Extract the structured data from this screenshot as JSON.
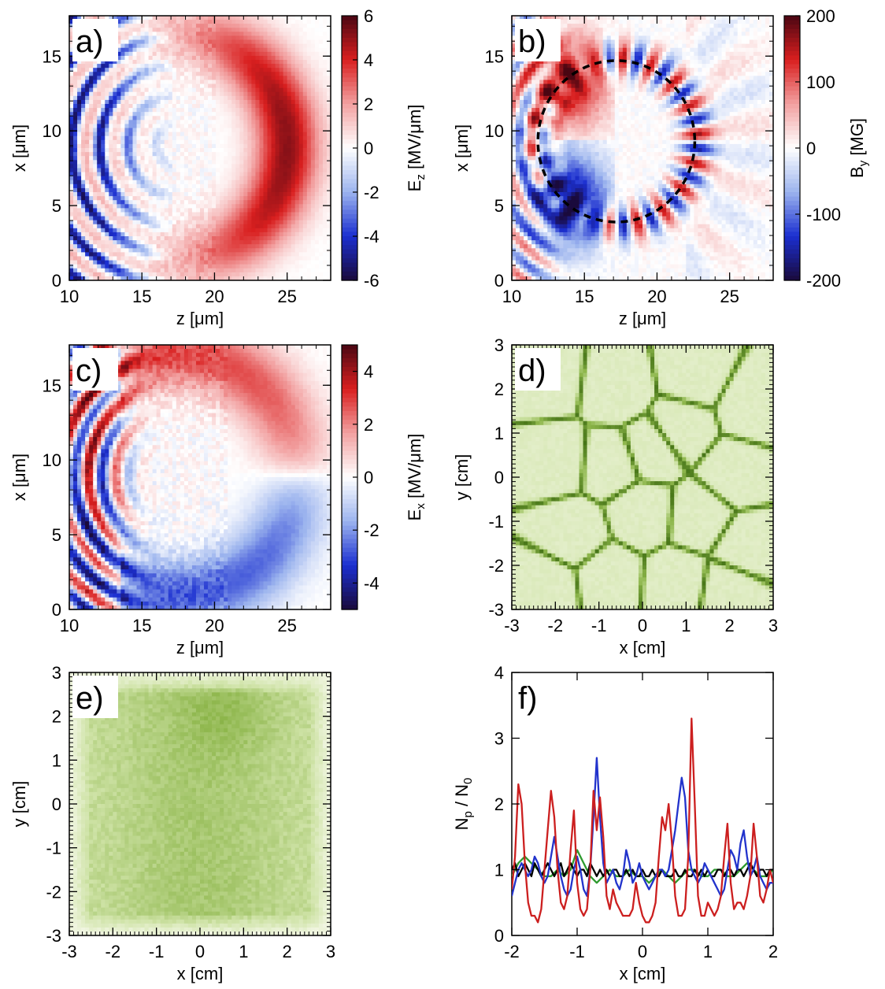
{
  "colors": {
    "red": "#cc1f1f",
    "blue": "#2233cc",
    "green": "#2e9a2e",
    "black": "#000000",
    "greenmap": [
      "#f1f6e2",
      "#cfe3a7",
      "#8db64b",
      "#3f6e12"
    ],
    "divmap": [
      "#1a0a3c",
      "#1b2fd0",
      "#9cb4ee",
      "#ffffff",
      "#f2a0a0",
      "#d91f1f",
      "#4a0612"
    ]
  },
  "chart_data": [
    {
      "id": "a",
      "type": "heatmap",
      "label": "a)",
      "title": "",
      "xlabel": "z [μm]",
      "ylabel": "x [μm]",
      "xlim": [
        10,
        28
      ],
      "ylim": [
        0,
        17.7
      ],
      "xticks": [
        "10",
        "15",
        "20",
        "25"
      ],
      "xtick_values": [
        10,
        15,
        20,
        25
      ],
      "yticks": [
        "0",
        "5",
        "10",
        "15"
      ],
      "ytick_values": [
        0,
        5,
        10,
        15
      ],
      "colorbar": {
        "label": "E_z [MV/μm]",
        "range": [
          -6,
          6
        ],
        "ticks": [
          "6",
          "4",
          "2",
          "0",
          "-2",
          "-4",
          "-6"
        ],
        "tick_values": [
          6,
          4,
          2,
          0,
          -2,
          -4,
          -6
        ]
      },
      "field": "Ez"
    },
    {
      "id": "b",
      "type": "heatmap",
      "label": "b)",
      "title": "",
      "xlabel": "z [μm]",
      "ylabel": "x [μm]",
      "xlim": [
        10,
        28
      ],
      "ylim": [
        0,
        17.7
      ],
      "xticks": [
        "10",
        "15",
        "20",
        "25"
      ],
      "xtick_values": [
        10,
        15,
        20,
        25
      ],
      "yticks": [
        "0",
        "5",
        "10",
        "15"
      ],
      "ytick_values": [
        0,
        5,
        10,
        15
      ],
      "colorbar": {
        "label": "B_y [MG]",
        "range": [
          -200,
          200
        ],
        "ticks": [
          "200",
          "100",
          "0",
          "-100",
          "-200"
        ],
        "tick_values": [
          200,
          100,
          0,
          -100,
          -200
        ]
      },
      "annotation": {
        "shape": "dashed-circle",
        "center": [
          17.2,
          9.3
        ],
        "radius": 5.4
      },
      "field": "By"
    },
    {
      "id": "c",
      "type": "heatmap",
      "label": "c)",
      "title": "",
      "xlabel": "z [μm]",
      "ylabel": "x [μm]",
      "xlim": [
        10,
        28
      ],
      "ylim": [
        0,
        17.7
      ],
      "xticks": [
        "10",
        "15",
        "20",
        "25"
      ],
      "xtick_values": [
        10,
        15,
        20,
        25
      ],
      "yticks": [
        "0",
        "5",
        "10",
        "15"
      ],
      "ytick_values": [
        0,
        5,
        10,
        15
      ],
      "colorbar": {
        "label": "E_x [MV/μm]",
        "range": [
          -5,
          5
        ],
        "ticks": [
          "4",
          "2",
          "0",
          "-2",
          "-4"
        ],
        "tick_values": [
          4,
          2,
          0,
          -2,
          -4
        ]
      },
      "field": "Ex"
    },
    {
      "id": "d",
      "type": "heatmap",
      "label": "d)",
      "title": "",
      "xlabel": "x [cm]",
      "ylabel": "y [cm]",
      "xlim": [
        -3,
        3
      ],
      "ylim": [
        -3,
        3
      ],
      "xticks": [
        "-3",
        "-2",
        "-1",
        "0",
        "1",
        "2",
        "3"
      ],
      "xtick_values": [
        -3,
        -2,
        -1,
        0,
        1,
        2,
        3
      ],
      "yticks": [
        "-3",
        "-2",
        "-1",
        "0",
        "1",
        "2",
        "3"
      ],
      "ytick_values": [
        -3,
        -2,
        -1,
        0,
        1,
        2,
        3
      ],
      "field": "cells"
    },
    {
      "id": "e",
      "type": "heatmap",
      "label": "e)",
      "title": "",
      "xlabel": "x [cm]",
      "ylabel": "y [cm]",
      "xlim": [
        -3,
        3
      ],
      "ylim": [
        -3,
        3
      ],
      "xticks": [
        "-3",
        "-2",
        "-1",
        "0",
        "1",
        "2",
        "3"
      ],
      "xtick_values": [
        -3,
        -2,
        -1,
        0,
        1,
        2,
        3
      ],
      "yticks": [
        "-3",
        "-2",
        "-1",
        "0",
        "1",
        "2",
        "3"
      ],
      "ytick_values": [
        -3,
        -2,
        -1,
        0,
        1,
        2,
        3
      ],
      "field": "diffuse"
    },
    {
      "id": "f",
      "type": "line",
      "label": "f)",
      "title": "",
      "xlabel": "x [cm]",
      "ylabel": "N_p / N_0",
      "xlim": [
        -2,
        2
      ],
      "ylim": [
        0,
        4
      ],
      "xticks": [
        "-2",
        "-1",
        "0",
        "1",
        "2"
      ],
      "xtick_values": [
        -2,
        -1,
        0,
        1,
        2
      ],
      "yticks": [
        "0",
        "1",
        "2",
        "3",
        "4"
      ],
      "ytick_values": [
        0,
        1,
        2,
        3,
        4
      ],
      "series": [
        {
          "name": "red",
          "color": "#cc1f1f",
          "x": [
            -2.0,
            -1.95,
            -1.9,
            -1.85,
            -1.8,
            -1.75,
            -1.7,
            -1.65,
            -1.6,
            -1.55,
            -1.5,
            -1.45,
            -1.4,
            -1.35,
            -1.3,
            -1.25,
            -1.2,
            -1.15,
            -1.1,
            -1.05,
            -1.0,
            -0.95,
            -0.9,
            -0.85,
            -0.8,
            -0.75,
            -0.7,
            -0.65,
            -0.6,
            -0.55,
            -0.5,
            -0.45,
            -0.4,
            -0.35,
            -0.3,
            -0.25,
            -0.2,
            -0.15,
            -0.1,
            -0.05,
            0.0,
            0.05,
            0.1,
            0.15,
            0.2,
            0.25,
            0.3,
            0.35,
            0.4,
            0.45,
            0.5,
            0.55,
            0.6,
            0.65,
            0.7,
            0.75,
            0.8,
            0.85,
            0.9,
            0.95,
            1.0,
            1.05,
            1.1,
            1.15,
            1.2,
            1.25,
            1.3,
            1.35,
            1.4,
            1.45,
            1.5,
            1.55,
            1.6,
            1.65,
            1.7,
            1.75,
            1.8,
            1.85,
            1.9,
            1.95,
            2.0
          ],
          "values": [
            0.7,
            1.2,
            2.3,
            2.0,
            1.1,
            0.5,
            0.3,
            0.3,
            0.2,
            0.4,
            1.0,
            1.6,
            2.2,
            1.8,
            1.0,
            0.5,
            0.4,
            0.6,
            1.3,
            1.9,
            0.8,
            0.4,
            0.3,
            0.4,
            1.0,
            2.2,
            1.6,
            2.1,
            1.5,
            0.6,
            0.4,
            0.7,
            0.5,
            0.4,
            0.3,
            0.3,
            0.3,
            0.4,
            0.8,
            0.5,
            0.3,
            0.2,
            0.2,
            0.3,
            0.5,
            1.2,
            1.8,
            1.6,
            2.0,
            1.4,
            0.6,
            0.3,
            0.3,
            0.4,
            1.2,
            3.3,
            2.0,
            0.6,
            0.3,
            0.3,
            0.5,
            0.4,
            0.3,
            0.4,
            0.6,
            1.2,
            1.7,
            0.8,
            0.4,
            0.5,
            0.5,
            0.4,
            0.6,
            0.9,
            1.7,
            1.2,
            0.6,
            0.5,
            0.7,
            1.0,
            0.8
          ]
        },
        {
          "name": "blue",
          "color": "#2233cc",
          "x": [
            -2.0,
            -1.95,
            -1.9,
            -1.85,
            -1.8,
            -1.75,
            -1.7,
            -1.65,
            -1.6,
            -1.55,
            -1.5,
            -1.45,
            -1.4,
            -1.35,
            -1.3,
            -1.25,
            -1.2,
            -1.15,
            -1.1,
            -1.05,
            -1.0,
            -0.95,
            -0.9,
            -0.85,
            -0.8,
            -0.75,
            -0.7,
            -0.65,
            -0.6,
            -0.55,
            -0.5,
            -0.45,
            -0.4,
            -0.35,
            -0.3,
            -0.25,
            -0.2,
            -0.15,
            -0.1,
            -0.05,
            0.0,
            0.05,
            0.1,
            0.15,
            0.2,
            0.25,
            0.3,
            0.35,
            0.4,
            0.45,
            0.5,
            0.55,
            0.6,
            0.65,
            0.7,
            0.75,
            0.8,
            0.85,
            0.9,
            0.95,
            1.0,
            1.05,
            1.1,
            1.15,
            1.2,
            1.25,
            1.3,
            1.35,
            1.4,
            1.45,
            1.5,
            1.55,
            1.6,
            1.65,
            1.7,
            1.75,
            1.8,
            1.85,
            1.9,
            1.95,
            2.0
          ],
          "values": [
            0.6,
            0.8,
            1.0,
            1.1,
            1.0,
            0.9,
            1.0,
            1.2,
            1.1,
            0.9,
            0.8,
            0.9,
            1.2,
            1.5,
            1.2,
            0.9,
            0.7,
            0.6,
            0.7,
            1.0,
            1.2,
            1.0,
            0.7,
            0.6,
            1.0,
            1.8,
            2.7,
            1.8,
            1.1,
            0.8,
            0.9,
            1.0,
            0.8,
            0.7,
            0.9,
            1.3,
            1.1,
            0.8,
            0.9,
            1.1,
            0.9,
            0.8,
            0.7,
            0.8,
            0.9,
            1.0,
            1.0,
            0.9,
            1.0,
            1.3,
            1.6,
            2.0,
            2.4,
            2.1,
            1.3,
            1.0,
            0.9,
            0.8,
            0.9,
            1.1,
            1.0,
            0.9,
            0.8,
            0.7,
            0.6,
            0.7,
            1.0,
            1.3,
            1.2,
            1.0,
            1.4,
            1.6,
            1.2,
            0.9,
            1.0,
            1.2,
            0.9,
            0.8,
            0.7,
            0.8,
            0.8
          ]
        },
        {
          "name": "green",
          "color": "#2e9a2e",
          "x": [
            -2.0,
            -1.9,
            -1.8,
            -1.7,
            -1.6,
            -1.5,
            -1.4,
            -1.3,
            -1.2,
            -1.1,
            -1.0,
            -0.9,
            -0.8,
            -0.7,
            -0.6,
            -0.5,
            -0.4,
            -0.3,
            -0.2,
            -0.1,
            0.0,
            0.1,
            0.2,
            0.3,
            0.4,
            0.5,
            0.6,
            0.7,
            0.8,
            0.9,
            1.0,
            1.1,
            1.2,
            1.3,
            1.4,
            1.5,
            1.6,
            1.7,
            1.8,
            1.9,
            2.0
          ],
          "values": [
            0.9,
            1.1,
            1.2,
            1.1,
            1.0,
            0.9,
            0.9,
            1.0,
            0.9,
            1.0,
            1.3,
            1.1,
            0.9,
            0.8,
            0.9,
            1.0,
            0.9,
            0.9,
            1.0,
            0.9,
            0.9,
            0.8,
            0.9,
            1.0,
            0.9,
            0.8,
            0.9,
            1.0,
            1.0,
            0.9,
            0.9,
            1.0,
            1.0,
            0.9,
            0.9,
            1.0,
            1.1,
            1.0,
            0.9,
            0.9,
            1.0
          ]
        },
        {
          "name": "black",
          "color": "#000000",
          "x": [
            -2.0,
            -1.95,
            -1.9,
            -1.85,
            -1.8,
            -1.75,
            -1.7,
            -1.65,
            -1.6,
            -1.55,
            -1.5,
            -1.45,
            -1.4,
            -1.35,
            -1.3,
            -1.25,
            -1.2,
            -1.15,
            -1.1,
            -1.05,
            -1.0,
            -0.95,
            -0.9,
            -0.85,
            -0.8,
            -0.75,
            -0.7,
            -0.65,
            -0.6,
            -0.55,
            -0.5,
            -0.45,
            -0.4,
            -0.35,
            -0.3,
            -0.25,
            -0.2,
            -0.15,
            -0.1,
            -0.05,
            0.0,
            0.05,
            0.1,
            0.15,
            0.2,
            0.25,
            0.3,
            0.35,
            0.4,
            0.45,
            0.5,
            0.55,
            0.6,
            0.65,
            0.7,
            0.75,
            0.8,
            0.85,
            0.9,
            0.95,
            1.0,
            1.05,
            1.1,
            1.15,
            1.2,
            1.25,
            1.3,
            1.35,
            1.4,
            1.45,
            1.5,
            1.55,
            1.6,
            1.65,
            1.7,
            1.75,
            1.8,
            1.85,
            1.9,
            1.95,
            2.0
          ],
          "values": [
            1.0,
            1.1,
            0.9,
            1.0,
            1.1,
            1.0,
            0.9,
            1.1,
            1.0,
            0.9,
            1.0,
            1.1,
            1.0,
            0.9,
            1.0,
            1.1,
            0.9,
            1.0,
            1.1,
            1.0,
            0.9,
            1.0,
            1.0,
            0.9,
            1.1,
            1.0,
            0.9,
            1.0,
            0.9,
            1.0,
            0.9,
            1.0,
            1.0,
            0.9,
            0.9,
            1.0,
            0.9,
            1.0,
            0.9,
            0.9,
            1.0,
            0.9,
            0.9,
            1.0,
            0.9,
            0.9,
            1.0,
            0.9,
            0.9,
            0.9,
            1.0,
            0.9,
            0.9,
            1.0,
            0.9,
            0.9,
            1.0,
            0.9,
            1.0,
            0.9,
            1.0,
            0.9,
            0.9,
            1.0,
            1.0,
            0.9,
            1.0,
            1.0,
            0.9,
            1.0,
            1.0,
            0.9,
            1.0,
            1.1,
            1.0,
            0.9,
            1.0,
            1.0,
            0.9,
            1.0,
            1.0
          ]
        }
      ]
    }
  ]
}
